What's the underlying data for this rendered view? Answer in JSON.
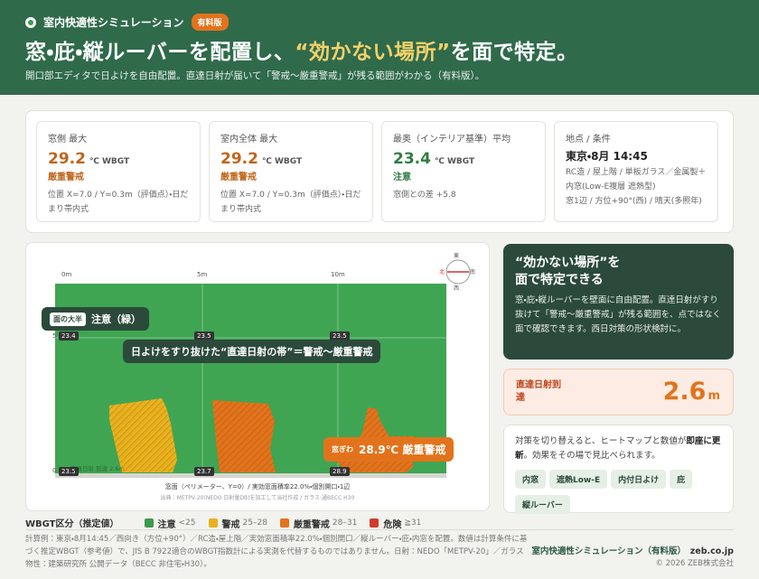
{
  "header": {
    "app": "室内快適性シミュレーション",
    "tag": "有料版",
    "title_pre": "窓・庇・縦ルーバーを配置し、",
    "title_highlight": "“効かない場所”",
    "title_post": "を面で特定。",
    "subtitle": "開口部エディタで日よけを自由配置。直達日射が届いて「警戒〜厳重警戒」が残る範囲がわかる（有料版）。"
  },
  "stats": [
    {
      "label": "窓側 最大",
      "value": "29.2",
      "unit": "℃ WBGT",
      "status": "厳重警戒",
      "note": "位置 X=7.0 / Y=0.3m（評価点）・日だまり帯内式"
    },
    {
      "label": "室内全体 最大",
      "value": "29.2",
      "unit": "℃ WBGT",
      "status": "厳重警戒",
      "note": "位置 X=7.0 / Y=0.3m（評価点）・日だまり帯内式"
    },
    {
      "label": "最奥（インテリア基準）平均",
      "value": "23.4",
      "unit": "℃ WBGT",
      "status": "注意",
      "note": "窓側との差 +5.8"
    },
    {
      "label": "地点 / 条件",
      "value": "東京・8月 14:45",
      "note": "RC造 / 屋上階 / 単板ガラス／金属製＋内窓(Low-E複層 遮熱型)",
      "note2": "窓1辺 / 方位+90°(西) / 晴天(多照年)"
    }
  ],
  "heatmap": {
    "compass": {
      "top": "東",
      "left": "北",
      "right": "南",
      "bottom": "西"
    },
    "x_labels": [
      "0m",
      "5m",
      "10m"
    ],
    "y_labels": [
      "5",
      "0"
    ],
    "cell_labels": [
      "23.4",
      "23.5",
      "23.5",
      "23.5",
      "23.7",
      "28.9"
    ],
    "callout_majority": {
      "tag": "面の大半",
      "text": "注意（緑）"
    },
    "callout_band": "日よけをすり抜けた“直達日射の帯”＝警戒〜厳重警戒",
    "callout_window": {
      "tag": "窓ぎわ",
      "text": "28.9℃ 厳重警戒"
    },
    "reach_note": "直達日射 到達 2.6m",
    "axis_caption": "窓面（ペリメーター、Y=0）/ 実効窓面積率22.0%・個別開口・1辺",
    "source": "出典：METPV-20(NEDO 日射量DB)を加工して当社作成 / ガラス:通BECC H30"
  },
  "insight": {
    "title_line1": "“効かない場所”を",
    "title_line2": "面で特定できる",
    "body": "窓・庇・縦ルーバーを壁面に自由配置。直達日射がすり抜けて「警戒〜厳重警戒」が残る範囲を、点ではなく面で確認できます。西日対策の形状検討に。"
  },
  "reach": {
    "label": "直達日射到達",
    "value": "2.6",
    "unit": "m"
  },
  "update": {
    "text_pre": "対策を切り替えると、ヒートマップと数値が",
    "text_bold": "即座に更新",
    "text_post": "。効果をその場で見比べられます。",
    "chips": [
      "内窓",
      "遮熱Low-E",
      "内付日よけ",
      "庇",
      "縦ルーバー"
    ]
  },
  "legend": {
    "title": "WBGT区分（推定値）",
    "items": [
      {
        "name": "注意",
        "range": "<25",
        "color": "#3c9a4e"
      },
      {
        "name": "警戒",
        "range": "25–28",
        "color": "#e8b21f"
      },
      {
        "name": "厳重警戒",
        "range": "28–31",
        "color": "#e2731c"
      },
      {
        "name": "危険",
        "range": "≧31",
        "color": "#d03b2e"
      }
    ]
  },
  "footer": {
    "note": "計算例：東京・8月14:45／西向き（方位+90°）／RC造・屋上階／実効窓面積率22.0%・個別開口／縦ルーバー・庇・内窓を配置。数値は計算条件に基づく推定WBGT（参考値）で、JIS B 7922適合のWBGT指数計による実測を代替するものではありません。日射：NEDO「METPV-20」／ガラス物性：建築研究所 公開データ（BECC 非住宅・H30）。",
    "brand": "室内快適性シミュレーション（有料版）",
    "site": "zeb.co.jp",
    "copyright": "© 2026 ZEB株式会社"
  }
}
